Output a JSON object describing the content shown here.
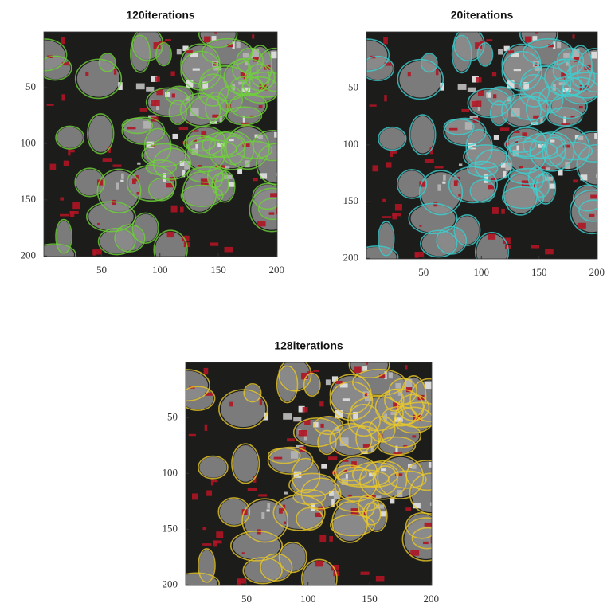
{
  "chart_data": [
    {
      "type": "image",
      "title": "120iterations",
      "color": "#6fd23a",
      "xlim": [
        0.5,
        200.5
      ],
      "ylim": [
        0.5,
        200.5
      ],
      "y_reversed": true,
      "xticks": [
        50,
        100,
        150,
        200
      ],
      "yticks": [
        50,
        100,
        150,
        200
      ]
    },
    {
      "type": "image",
      "title": "20iterations",
      "color": "#3fd0d0",
      "xlim": [
        0.5,
        200.5
      ],
      "ylim": [
        0.5,
        200.5
      ],
      "y_reversed": true,
      "xticks": [
        50,
        100,
        150,
        200
      ],
      "yticks": [
        50,
        100,
        150,
        200
      ]
    },
    {
      "type": "image",
      "title": "128iterations",
      "color": "#e8c82a",
      "xlim": [
        0.5,
        200.5
      ],
      "ylim": [
        0.5,
        200.5
      ],
      "y_reversed": true,
      "xticks": [
        50,
        100,
        150,
        200
      ],
      "yticks": [
        50,
        100,
        150,
        200
      ]
    }
  ]
}
